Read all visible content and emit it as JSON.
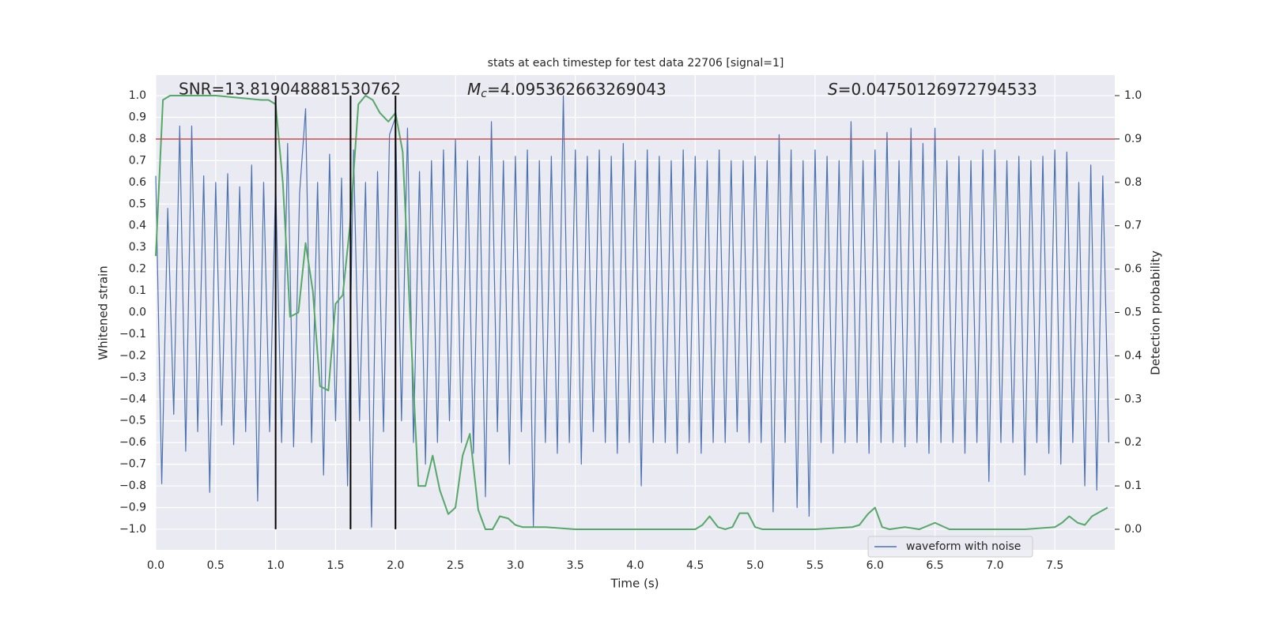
{
  "chart_data": {
    "type": "line",
    "title": "stats at each timestep for test data 22706 [signal=1]",
    "xlabel": "Time (s)",
    "ylabel": "Whitened strain",
    "y2label": "Detection probability",
    "annotations": [
      {
        "text": "SNR=13.819048881530762"
      },
      {
        "symbol": "M",
        "subscript": "c",
        "text": "=4.095362663269043"
      },
      {
        "symbol": "S",
        "text": "=0.04750126972794533"
      }
    ],
    "xlim": [
      0,
      8.0
    ],
    "ylim": [
      -1.095,
      1.095
    ],
    "y2lim": [
      -0.0474,
      1.0474
    ],
    "xticks": [
      {
        "value": 0,
        "label": "0.0"
      },
      {
        "value": 0.5,
        "label": "0.5"
      },
      {
        "value": 1,
        "label": "1.0"
      },
      {
        "value": 1.5,
        "label": "1.5"
      },
      {
        "value": 2,
        "label": "2.0"
      },
      {
        "value": 2.5,
        "label": "2.5"
      },
      {
        "value": 3,
        "label": "3.0"
      },
      {
        "value": 3.5,
        "label": "3.5"
      },
      {
        "value": 4,
        "label": "4.0"
      },
      {
        "value": 4.5,
        "label": "4.5"
      },
      {
        "value": 5,
        "label": "5.0"
      },
      {
        "value": 5.5,
        "label": "5.5"
      },
      {
        "value": 6,
        "label": "6.0"
      },
      {
        "value": 6.5,
        "label": "6.5"
      },
      {
        "value": 7,
        "label": "7.0"
      },
      {
        "value": 7.5,
        "label": "7.5"
      }
    ],
    "yticks": [
      {
        "value": -1,
        "label": "−1.0"
      },
      {
        "value": -0.9,
        "label": "−0.9"
      },
      {
        "value": -0.8,
        "label": "−0.8"
      },
      {
        "value": -0.7,
        "label": "−0.7"
      },
      {
        "value": -0.6,
        "label": "−0.6"
      },
      {
        "value": -0.5,
        "label": "−0.5"
      },
      {
        "value": -0.4,
        "label": "−0.4"
      },
      {
        "value": -0.3,
        "label": "−0.3"
      },
      {
        "value": -0.2,
        "label": "−0.2"
      },
      {
        "value": -0.1,
        "label": "−0.1"
      },
      {
        "value": 0,
        "label": "0.0"
      },
      {
        "value": 0.1,
        "label": "0.1"
      },
      {
        "value": 0.2,
        "label": "0.2"
      },
      {
        "value": 0.3,
        "label": "0.3"
      },
      {
        "value": 0.4,
        "label": "0.4"
      },
      {
        "value": 0.5,
        "label": "0.5"
      },
      {
        "value": 0.6,
        "label": "0.6"
      },
      {
        "value": 0.7,
        "label": "0.7"
      },
      {
        "value": 0.8,
        "label": "0.8"
      },
      {
        "value": 0.9,
        "label": "0.9"
      },
      {
        "value": 1,
        "label": "1.0"
      }
    ],
    "y2ticks": [
      {
        "value": 0,
        "label": "0.0"
      },
      {
        "value": 0.1,
        "label": "0.1"
      },
      {
        "value": 0.2,
        "label": "0.2"
      },
      {
        "value": 0.3,
        "label": "0.3"
      },
      {
        "value": 0.4,
        "label": "0.4"
      },
      {
        "value": 0.5,
        "label": "0.5"
      },
      {
        "value": 0.6,
        "label": "0.6"
      },
      {
        "value": 0.7,
        "label": "0.7"
      },
      {
        "value": 0.8,
        "label": "0.8"
      },
      {
        "value": 0.9,
        "label": "0.9"
      },
      {
        "value": 1,
        "label": "1.0"
      }
    ],
    "grid": true,
    "legend": "lower right",
    "series": [
      {
        "name": "waveform with noise",
        "color": "#4c72b0",
        "x": [
          0,
          0.05,
          0.1,
          0.15,
          0.2,
          0.25,
          0.3,
          0.35,
          0.4,
          0.45,
          0.5,
          0.55,
          0.6,
          0.65,
          0.7,
          0.75,
          0.8,
          0.85,
          0.9,
          0.95,
          1,
          1.05,
          1.1,
          1.15,
          1.2,
          1.25,
          1.3,
          1.35,
          1.4,
          1.45,
          1.5,
          1.55,
          1.6,
          1.65,
          1.7,
          1.75,
          1.8,
          1.85,
          1.9,
          1.95,
          2,
          2.05,
          2.1,
          2.15,
          2.2,
          2.25,
          2.3,
          2.35,
          2.4,
          2.45,
          2.5,
          2.55,
          2.6,
          2.65,
          2.7,
          2.75,
          2.8,
          2.85,
          2.9,
          2.95,
          3,
          3.05,
          3.1,
          3.15,
          3.2,
          3.25,
          3.3,
          3.35,
          3.4,
          3.45,
          3.5,
          3.55,
          3.6,
          3.65,
          3.7,
          3.75,
          3.8,
          3.85,
          3.9,
          3.95,
          4,
          4.05,
          4.1,
          4.15,
          4.2,
          4.25,
          4.3,
          4.35,
          4.4,
          4.45,
          4.5,
          4.55,
          4.6,
          4.65,
          4.7,
          4.75,
          4.8,
          4.85,
          4.9,
          4.95,
          5,
          5.05,
          5.1,
          5.15,
          5.2,
          5.25,
          5.3,
          5.35,
          5.4,
          5.45,
          5.5,
          5.55,
          5.6,
          5.65,
          5.7,
          5.75,
          5.8,
          5.85,
          5.9,
          5.95,
          6,
          6.05,
          6.1,
          6.15,
          6.2,
          6.25,
          6.3,
          6.35,
          6.4,
          6.45,
          6.5,
          6.55,
          6.6,
          6.65,
          6.7,
          6.75,
          6.8,
          6.85,
          6.9,
          6.95,
          7,
          7.05,
          7.1,
          7.15,
          7.2,
          7.25,
          7.3,
          7.35,
          7.4,
          7.45,
          7.5,
          7.55,
          7.6,
          7.65,
          7.7,
          7.75,
          7.8,
          7.85,
          7.9,
          7.95
        ],
        "values": [
          0.63,
          -0.79,
          0.48,
          -0.47,
          0.86,
          -0.64,
          0.86,
          -0.55,
          0.63,
          -0.83,
          0.6,
          -0.52,
          0.64,
          -0.61,
          0.58,
          -0.55,
          0.68,
          -0.87,
          0.6,
          -0.55,
          0.6,
          -0.6,
          0.78,
          -0.62,
          0.55,
          0.94,
          -0.6,
          0.6,
          -0.75,
          0.73,
          -0.5,
          0.62,
          -0.8,
          0.75,
          -0.5,
          0.6,
          -0.99,
          0.65,
          -0.55,
          0.82,
          0.9,
          -0.5,
          0.85,
          -0.6,
          0.65,
          -0.7,
          0.7,
          -0.6,
          0.75,
          -0.5,
          0.8,
          -0.6,
          0.7,
          -0.65,
          0.72,
          -0.85,
          0.88,
          -0.55,
          0.7,
          -0.7,
          0.72,
          -0.55,
          0.75,
          -0.99,
          0.7,
          -0.6,
          0.72,
          -0.65,
          1.0,
          -0.6,
          0.75,
          -0.7,
          0.72,
          -0.55,
          0.75,
          -0.6,
          0.72,
          -0.65,
          0.78,
          -0.6,
          0.7,
          -0.8,
          0.75,
          -0.6,
          0.72,
          -0.6,
          0.7,
          -0.65,
          0.75,
          -0.6,
          0.72,
          -0.65,
          0.7,
          -0.6,
          0.75,
          -0.6,
          0.7,
          -0.55,
          0.7,
          -0.6,
          0.72,
          -0.6,
          0.7,
          -0.92,
          0.82,
          -0.6,
          0.75,
          -0.9,
          0.7,
          -0.94,
          0.75,
          -0.6,
          0.72,
          -0.65,
          0.7,
          -0.6,
          0.88,
          -0.6,
          0.7,
          -0.65,
          0.75,
          -0.6,
          0.83,
          -0.6,
          0.7,
          -0.62,
          0.85,
          -0.6,
          0.78,
          -0.65,
          0.85,
          -0.6,
          0.7,
          -0.6,
          0.72,
          -0.65,
          0.7,
          -0.6,
          0.75,
          -0.78,
          0.75,
          -0.6,
          0.7,
          -0.6,
          0.72,
          -0.75,
          0.7,
          -0.6,
          0.72,
          -0.65,
          0.75,
          -0.7,
          0.74,
          -0.6,
          0.6,
          -0.8,
          0.68,
          -0.82,
          0.63,
          -0.6
        ]
      },
      {
        "color": "#55a868",
        "axis": "y2",
        "x": [
          0,
          0.06,
          0.12,
          0.5,
          0.88,
          0.94,
          1.0,
          1.06,
          1.12,
          1.19,
          1.25,
          1.31,
          1.37,
          1.44,
          1.5,
          1.56,
          1.62,
          1.69,
          1.75,
          1.81,
          1.87,
          1.94,
          2.0,
          2.06,
          2.12,
          2.19,
          2.25,
          2.31,
          2.37,
          2.44,
          2.5,
          2.56,
          2.62,
          2.69,
          2.75,
          2.81,
          2.87,
          2.94,
          3.0,
          3.06,
          3.25,
          3.5,
          3.75,
          4.0,
          4.5,
          4.56,
          4.62,
          4.69,
          4.75,
          4.81,
          4.87,
          4.94,
          5.0,
          5.06,
          5.5,
          5.81,
          5.87,
          5.94,
          6.0,
          6.06,
          6.12,
          6.25,
          6.37,
          6.5,
          6.62,
          6.75,
          7.0,
          7.25,
          7.5,
          7.56,
          7.62,
          7.69,
          7.75,
          7.81,
          7.94
        ],
        "values": [
          0.63,
          0.99,
          1.0,
          1.0,
          0.99,
          0.99,
          0.98,
          0.8,
          0.49,
          0.5,
          0.66,
          0.55,
          0.33,
          0.32,
          0.52,
          0.54,
          0.7,
          0.98,
          1.0,
          0.99,
          0.96,
          0.94,
          0.96,
          0.87,
          0.5,
          0.1,
          0.1,
          0.17,
          0.09,
          0.035,
          0.05,
          0.17,
          0.22,
          0.045,
          0.0,
          0.0,
          0.03,
          0.025,
          0.01,
          0.005,
          0.005,
          0.0,
          0.0,
          0.0,
          0.0,
          0.01,
          0.03,
          0.005,
          0.0,
          0.005,
          0.037,
          0.037,
          0.005,
          0.0,
          0.0,
          0.005,
          0.01,
          0.035,
          0.05,
          0.005,
          0.0,
          0.005,
          0.0,
          0.015,
          0.0,
          0.0,
          0.0,
          0.0,
          0.005,
          0.015,
          0.03,
          0.015,
          0.01,
          0.03,
          0.05
        ]
      }
    ],
    "hline": {
      "y": 0.8,
      "color": "#c44e52"
    },
    "vlines": {
      "x": [
        1.0,
        1.625,
        2.0
      ],
      "ymin": -1.0,
      "ymax": 1.0,
      "color": "#000000"
    }
  }
}
